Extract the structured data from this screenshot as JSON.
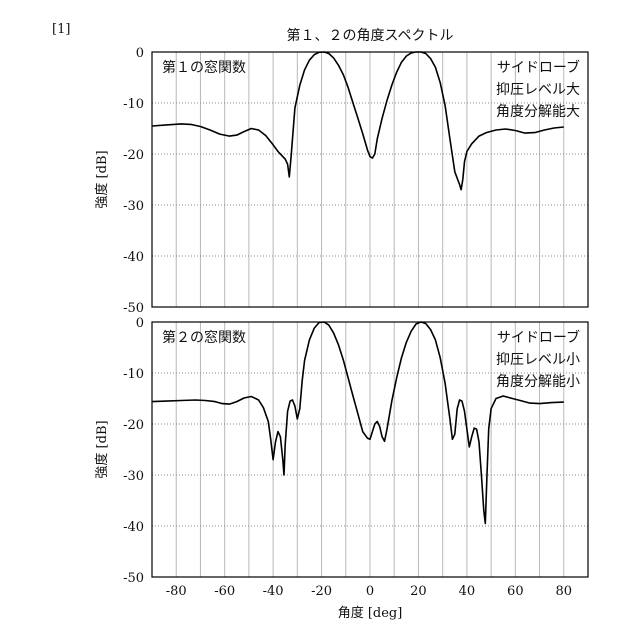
{
  "figure": {
    "label": "[1]",
    "title": "第１、２の角度スペクトル"
  },
  "chart_data": [
    {
      "type": "line",
      "panel_label": "第１の窓関数",
      "annotation": [
        "サイドローブ",
        "抑圧レベル大",
        "角度分解能大"
      ],
      "xlabel": "",
      "ylabel": "強度 [dB]",
      "xlim": [
        -90,
        90
      ],
      "ylim": [
        -50,
        0
      ],
      "xticks": [
        -80,
        -60,
        -40,
        -20,
        0,
        20,
        40,
        60,
        80
      ],
      "yticks": [
        0,
        -10,
        -20,
        -30,
        -40,
        -50
      ],
      "grid": true,
      "series": [
        {
          "color": "#000000",
          "x": [
            -90,
            -84,
            -78,
            -74,
            -70,
            -66,
            -62,
            -58,
            -55,
            -52,
            -49,
            -46,
            -43,
            -40,
            -38,
            -36,
            -35,
            -34,
            -33.3,
            -32.5,
            -31,
            -29,
            -27,
            -25,
            -23,
            -21,
            -19,
            -17,
            -15,
            -13,
            -11,
            -9,
            -7,
            -5,
            -3,
            -1,
            0,
            1,
            2,
            3,
            5,
            7,
            9,
            11,
            13,
            15,
            17,
            19,
            21,
            23,
            25,
            27,
            29,
            31,
            33,
            35,
            37,
            37.6,
            38.3,
            39,
            40,
            42,
            45,
            48,
            52,
            56,
            60,
            64,
            68,
            72,
            76,
            80
          ],
          "y": [
            -14.5,
            -14.3,
            -14.1,
            -14.2,
            -14.6,
            -15.3,
            -16.1,
            -16.5,
            -16.3,
            -15.6,
            -15.0,
            -15.3,
            -16.4,
            -18.2,
            -19.5,
            -20.5,
            -21.0,
            -22.0,
            -24.5,
            -20.0,
            -11.0,
            -6.5,
            -3.5,
            -1.6,
            -0.5,
            -0.05,
            0.0,
            -0.3,
            -1.2,
            -2.6,
            -4.5,
            -7.0,
            -10.0,
            -13.0,
            -16.0,
            -19.3,
            -20.5,
            -20.8,
            -20.0,
            -17.0,
            -13.0,
            -9.5,
            -6.5,
            -4.0,
            -2.0,
            -0.8,
            -0.2,
            0.0,
            0.0,
            -0.3,
            -1.3,
            -3.0,
            -6.0,
            -10.5,
            -17.0,
            -23.5,
            -26.0,
            -27.0,
            -25.0,
            -21.5,
            -19.5,
            -18.0,
            -16.5,
            -15.8,
            -15.3,
            -15.1,
            -15.4,
            -15.9,
            -15.8,
            -15.3,
            -14.9,
            -14.7
          ]
        }
      ]
    },
    {
      "type": "line",
      "panel_label": "第２の窓関数",
      "annotation": [
        "サイドローブ",
        "抑圧レベル小",
        "角度分解能小"
      ],
      "xlabel": "角度 [deg]",
      "ylabel": "強度 [dB]",
      "xlim": [
        -90,
        90
      ],
      "ylim": [
        -50,
        0
      ],
      "xticks": [
        -80,
        -60,
        -40,
        -20,
        0,
        20,
        40,
        60,
        80
      ],
      "yticks": [
        0,
        -10,
        -20,
        -30,
        -40,
        -50
      ],
      "grid": true,
      "series": [
        {
          "color": "#000000",
          "x": [
            -90,
            -84,
            -78,
            -72,
            -68,
            -64,
            -61,
            -58,
            -55,
            -52,
            -49,
            -46,
            -44,
            -42,
            -41,
            -40,
            -39,
            -38,
            -37,
            -36,
            -35.5,
            -35,
            -34,
            -33,
            -32,
            -31,
            -30,
            -29,
            -28,
            -27,
            -25,
            -23,
            -21,
            -19,
            -17,
            -15,
            -13,
            -11,
            -9,
            -7,
            -5,
            -3,
            -1,
            0,
            1,
            2,
            3,
            4,
            5,
            6,
            7,
            9,
            11,
            13,
            15,
            17,
            19,
            21,
            23,
            25,
            27,
            29,
            31,
            32,
            33,
            34,
            35,
            36,
            37,
            38,
            39,
            40,
            41,
            42,
            43,
            44,
            45,
            46,
            47,
            47.6,
            48.2,
            49,
            50,
            52,
            55,
            58,
            62,
            66,
            70,
            75,
            80
          ],
          "y": [
            -15.6,
            -15.5,
            -15.4,
            -15.3,
            -15.4,
            -15.6,
            -16.0,
            -16.1,
            -15.6,
            -14.9,
            -14.6,
            -15.3,
            -16.8,
            -19.5,
            -23.0,
            -27.0,
            -23.5,
            -21.5,
            -22.5,
            -27.0,
            -30.0,
            -24.0,
            -17.5,
            -15.5,
            -15.3,
            -16.5,
            -19.0,
            -17.0,
            -11.5,
            -7.5,
            -3.5,
            -1.2,
            -0.1,
            0.0,
            -0.6,
            -2.2,
            -4.5,
            -7.5,
            -11.0,
            -14.5,
            -18.0,
            -21.5,
            -22.8,
            -23.0,
            -21.5,
            -20.0,
            -19.5,
            -20.5,
            -22.5,
            -23.4,
            -21.0,
            -15.5,
            -11.0,
            -7.0,
            -4.0,
            -1.8,
            -0.4,
            0.0,
            -0.3,
            -1.5,
            -3.5,
            -7.0,
            -12.0,
            -15.5,
            -19.0,
            -23.0,
            -22.0,
            -17.0,
            -15.3,
            -15.5,
            -17.5,
            -21.0,
            -24.5,
            -22.5,
            -20.8,
            -21.0,
            -23.5,
            -30.0,
            -37.0,
            -39.5,
            -31.0,
            -21.0,
            -17.0,
            -15.0,
            -14.5,
            -14.9,
            -15.4,
            -15.9,
            -16.0,
            -15.8,
            -15.7
          ]
        }
      ]
    }
  ]
}
